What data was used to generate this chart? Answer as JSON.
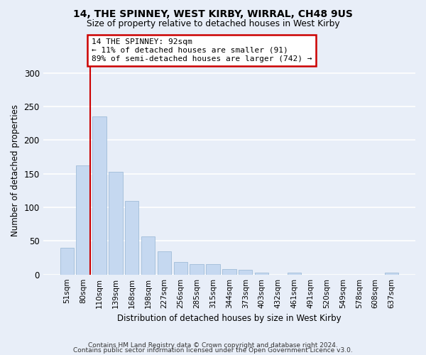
{
  "title": "14, THE SPINNEY, WEST KIRBY, WIRRAL, CH48 9US",
  "subtitle": "Size of property relative to detached houses in West Kirby",
  "xlabel": "Distribution of detached houses by size in West Kirby",
  "ylabel": "Number of detached properties",
  "categories": [
    "51sqm",
    "80sqm",
    "110sqm",
    "139sqm",
    "168sqm",
    "198sqm",
    "227sqm",
    "256sqm",
    "285sqm",
    "315sqm",
    "344sqm",
    "373sqm",
    "403sqm",
    "432sqm",
    "461sqm",
    "491sqm",
    "520sqm",
    "549sqm",
    "578sqm",
    "608sqm",
    "637sqm"
  ],
  "values": [
    40,
    162,
    235,
    153,
    110,
    57,
    35,
    19,
    15,
    15,
    8,
    7,
    3,
    0,
    3,
    0,
    0,
    0,
    0,
    0,
    3
  ],
  "bar_color": "#c5d8f0",
  "bar_edge_color": "#a0bcd8",
  "ylim": [
    0,
    310
  ],
  "yticks": [
    0,
    50,
    100,
    150,
    200,
    250,
    300
  ],
  "red_line_x": 1.45,
  "annotation_text": "14 THE SPINNEY: 92sqm\n← 11% of detached houses are smaller (91)\n89% of semi-detached houses are larger (742) →",
  "annotation_box_color": "#ffffff",
  "annotation_box_edge_color": "#cc0000",
  "footer_line1": "Contains HM Land Registry data © Crown copyright and database right 2024.",
  "footer_line2": "Contains public sector information licensed under the Open Government Licence v3.0.",
  "background_color": "#e8eef8",
  "grid_color": "#ffffff"
}
